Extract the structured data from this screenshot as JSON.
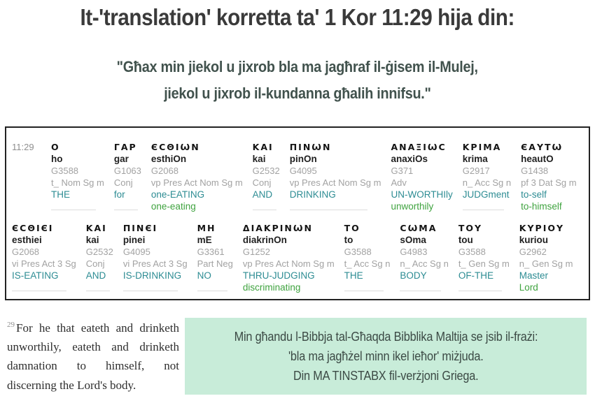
{
  "title": "It-'translation' korretta ta' 1 Kor 11:29 hija din:",
  "subtitle": {
    "line1": "\"Għax min jiekol u jixrob bla ma jagħraf il-ġisem il-Mulej,",
    "line2": "jiekol u jixrob il-kundanna għalih innifsu.\""
  },
  "interlinear": {
    "verse_ref": "11:29",
    "rows": [
      [
        {
          "greek": "Ο",
          "translit": "ho",
          "strongs": "G3588",
          "parsing": "t_ Nom Sg m",
          "gloss": "THE",
          "gloss2": ""
        },
        {
          "greek": "ΓΑΡ",
          "translit": "gar",
          "strongs": "G1063",
          "parsing": "Conj",
          "gloss": "for",
          "gloss2": ""
        },
        {
          "greek": "ЄСΘΙѠΝ",
          "translit": "esthiOn",
          "strongs": "G2068",
          "parsing": "vp Pres Act Nom Sg m",
          "gloss": "one-EATING",
          "gloss2": "one-eating"
        },
        {
          "greek": "ΚΑΙ",
          "translit": "kai",
          "strongs": "G2532",
          "parsing": "Conj",
          "gloss": "AND",
          "gloss2": ""
        },
        {
          "greek": "ΠΙΝѠΝ",
          "translit": "pinOn",
          "strongs": "G4095",
          "parsing": "vp Pres Act Nom Sg m",
          "gloss": "DRINKING",
          "gloss2": ""
        },
        {
          "greek": "ΑΝΑΞΙѠС",
          "translit": "anaxiOs",
          "strongs": "G371",
          "parsing": "Adv",
          "gloss": "UN-WORTHIly",
          "gloss2": "unworthily"
        },
        {
          "greek": "ΚΡΙΜΑ",
          "translit": "krima",
          "strongs": "G2917",
          "parsing": "n_ Acc Sg n",
          "gloss": "JUDGment",
          "gloss2": ""
        },
        {
          "greek": "ЄΑΥΤѠ",
          "translit": "heautO",
          "strongs": "G1438",
          "parsing": "pf 3 Dat Sg m",
          "gloss": "to-self",
          "gloss2": "to-himself"
        }
      ],
      [
        {
          "greek": "ЄСΘΙЄΙ",
          "translit": "esthiei",
          "strongs": "G2068",
          "parsing": "vi Pres Act 3 Sg",
          "gloss": "IS-EATING",
          "gloss2": ""
        },
        {
          "greek": "ΚΑΙ",
          "translit": "kai",
          "strongs": "G2532",
          "parsing": "Conj",
          "gloss": "AND",
          "gloss2": ""
        },
        {
          "greek": "ΠΙΝЄΙ",
          "translit": "pinei",
          "strongs": "G4095",
          "parsing": "vi Pres Act 3 Sg",
          "gloss": "IS-DRINKING",
          "gloss2": ""
        },
        {
          "greek": "ΜΗ",
          "translit": "mE",
          "strongs": "G3361",
          "parsing": "Part Neg",
          "gloss": "NO",
          "gloss2": ""
        },
        {
          "greek": "ΔΙΑΚΡΙΝѠΝ",
          "translit": "diakrinOn",
          "strongs": "G1252",
          "parsing": "vp Pres Act Nom Sg m",
          "gloss": "THRU-JUDGING",
          "gloss2": "discriminating"
        },
        {
          "greek": "ΤΟ",
          "translit": "to",
          "strongs": "G3588",
          "parsing": "t_ Acc Sg n",
          "gloss": "THE",
          "gloss2": ""
        },
        {
          "greek": "СѠΜΑ",
          "translit": "sOma",
          "strongs": "G4983",
          "parsing": "n_ Acc Sg n",
          "gloss": "BODY",
          "gloss2": ""
        },
        {
          "greek": "ΤΟΥ",
          "translit": "tou",
          "strongs": "G3588",
          "parsing": "t_ Gen Sg m",
          "gloss": "OF-THE",
          "gloss2": ""
        },
        {
          "greek": "ΚΥΡΙΟΥ",
          "translit": "kuriou",
          "strongs": "G2962",
          "parsing": "n_ Gen Sg m",
          "gloss": "Master",
          "gloss2": "Lord"
        }
      ]
    ]
  },
  "kjv": {
    "verse_num": "29",
    "text": "For he that eateth and drinketh unworthily, eateth and drinketh damnation to himself, not discerning the Lord's body."
  },
  "note_box": {
    "line1": "Min għandu l-Bibbja tal-Għaqda Bibblika Maltija se jsib il-frażi:",
    "line2": "'bla ma jagħżel minn ikel ieħor' miżjuda.",
    "line3": "Din MA TINSTABX fil-verżjoni Griega."
  },
  "colors": {
    "gloss_teal": "#2d8c93",
    "gloss_green": "#3fa33f",
    "meta_gray": "#a2a2a2",
    "note_box_background": "#c8ecd9",
    "note_text": "#3c4a45",
    "title_text": "#3a3a3a",
    "table_border": "#222222"
  }
}
